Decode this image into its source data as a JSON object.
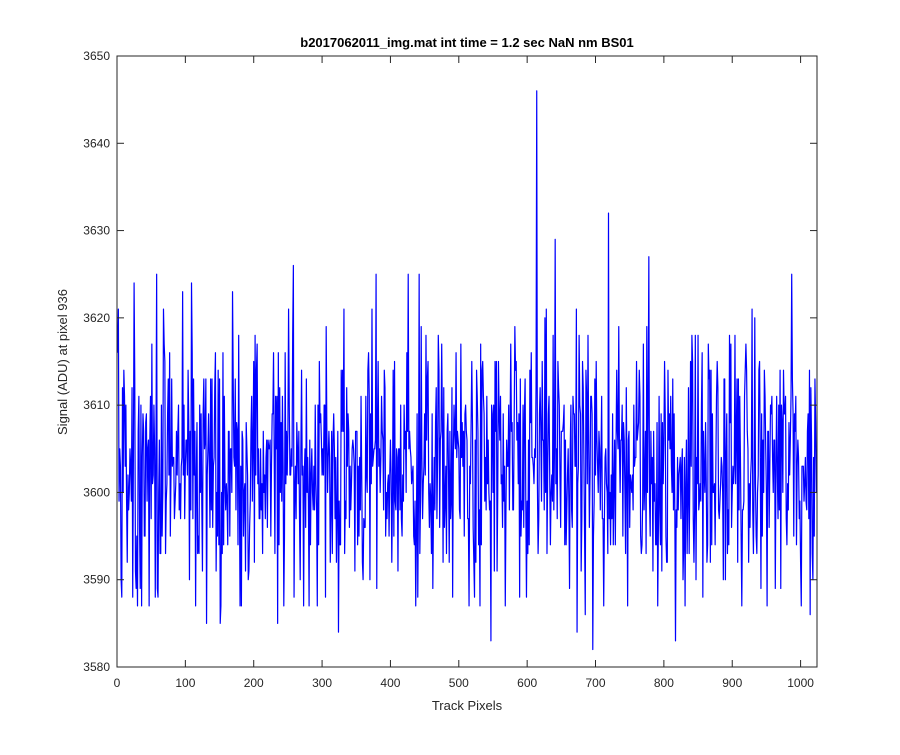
{
  "chart_data": {
    "type": "line",
    "title": "b2017062011_img.mat int time = 1.2 sec  NaN nm BS01",
    "xlabel": "Track Pixels",
    "ylabel": "Signal (ADU) at pixel 936",
    "xlim": [
      0,
      1024
    ],
    "ylim": [
      3580,
      3650
    ],
    "xticks": [
      0,
      100,
      200,
      300,
      400,
      500,
      600,
      700,
      800,
      900,
      1000
    ],
    "yticks": [
      3580,
      3590,
      3600,
      3610,
      3620,
      3630,
      3640,
      3650
    ],
    "grid": false,
    "line_color": "#0000ff",
    "n_points": 1024,
    "mean_level": 3603,
    "noise_range": [
      3582,
      3646
    ],
    "notable_points": [
      {
        "x": 1,
        "y": 3621
      },
      {
        "x": 24,
        "y": 3624
      },
      {
        "x": 57,
        "y": 3625
      },
      {
        "x": 95,
        "y": 3623
      },
      {
        "x": 108,
        "y": 3624
      },
      {
        "x": 130,
        "y": 3585
      },
      {
        "x": 150,
        "y": 3585
      },
      {
        "x": 168,
        "y": 3623
      },
      {
        "x": 234,
        "y": 3585
      },
      {
        "x": 257,
        "y": 3626
      },
      {
        "x": 323,
        "y": 3584
      },
      {
        "x": 378,
        "y": 3625
      },
      {
        "x": 425,
        "y": 3625
      },
      {
        "x": 441,
        "y": 3625
      },
      {
        "x": 530,
        "y": 3587
      },
      {
        "x": 546,
        "y": 3583
      },
      {
        "x": 567,
        "y": 3587
      },
      {
        "x": 588,
        "y": 3588
      },
      {
        "x": 613,
        "y": 3646
      },
      {
        "x": 640,
        "y": 3629
      },
      {
        "x": 672,
        "y": 3584
      },
      {
        "x": 684,
        "y": 3586
      },
      {
        "x": 695,
        "y": 3582
      },
      {
        "x": 718,
        "y": 3632
      },
      {
        "x": 777,
        "y": 3627
      },
      {
        "x": 816,
        "y": 3583
      },
      {
        "x": 986,
        "y": 3625
      },
      {
        "x": 1000,
        "y": 3587
      },
      {
        "x": 1013,
        "y": 3586
      }
    ]
  }
}
